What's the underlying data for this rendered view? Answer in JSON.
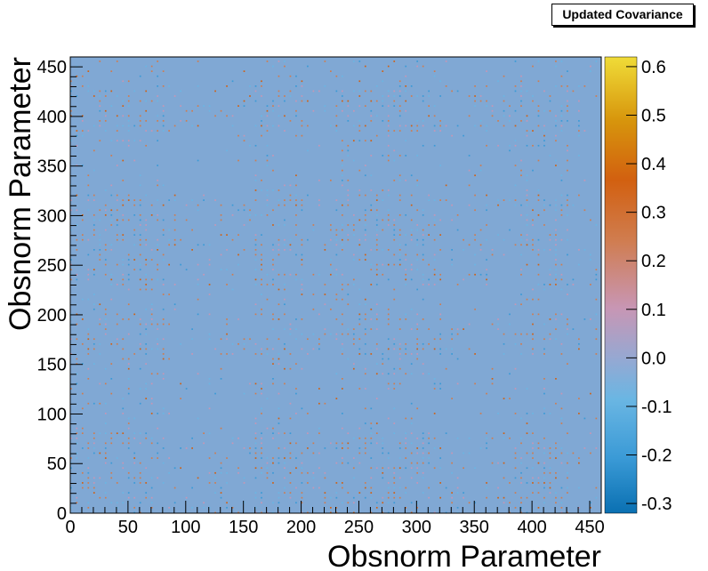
{
  "chart_data": {
    "type": "heatmap",
    "title": "Updated Covariance",
    "xlabel": "Obsnorm Parameter",
    "ylabel": "Obsnorm Parameter",
    "xlim": [
      0,
      460
    ],
    "ylim": [
      0,
      460
    ],
    "x_ticks": [
      0,
      50,
      100,
      150,
      200,
      250,
      300,
      350,
      400,
      450
    ],
    "y_ticks": [
      0,
      50,
      100,
      150,
      200,
      250,
      300,
      350,
      400,
      450
    ],
    "zlim": [
      -0.32,
      0.62
    ],
    "z_ticks": [
      "-0.3",
      "-0.2",
      "-0.1",
      "0.0",
      "0.1",
      "0.2",
      "0.3",
      "0.4",
      "0.5",
      "0.6"
    ],
    "background_value": 0.0,
    "colors": {
      "background": "#80a8d4",
      "palette": [
        "#0a70b2",
        "#3a9ad6",
        "#6ab6e3",
        "#96a8d2",
        "#c896b4",
        "#d07c4e",
        "#d26010",
        "#d7950c",
        "#f0dc38"
      ]
    },
    "structure_notes": "Covariance matrix mostly near 0.0 with checkered blocks of small +/- values concentrated in bands near parameter indices 0-80, 160-200, 230-320 and 380-430"
  }
}
